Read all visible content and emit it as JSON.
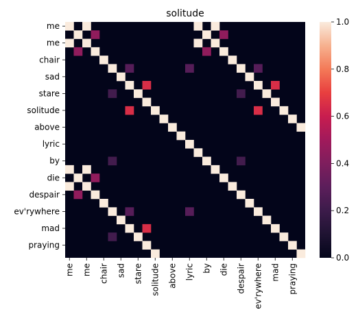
{
  "chart_data": {
    "type": "heatmap",
    "title": "solitude",
    "xlabel": "",
    "ylabel": "",
    "rows": 28,
    "cols": 28,
    "y_tick_labels": [
      {
        "index": 0,
        "label": "me"
      },
      {
        "index": 2,
        "label": "me"
      },
      {
        "index": 4,
        "label": "chair"
      },
      {
        "index": 6,
        "label": "sad"
      },
      {
        "index": 8,
        "label": "stare"
      },
      {
        "index": 10,
        "label": "solitude"
      },
      {
        "index": 12,
        "label": "above"
      },
      {
        "index": 14,
        "label": "lyric"
      },
      {
        "index": 16,
        "label": "by"
      },
      {
        "index": 18,
        "label": "die"
      },
      {
        "index": 20,
        "label": "despair"
      },
      {
        "index": 22,
        "label": "ev'rywhere"
      },
      {
        "index": 24,
        "label": "mad"
      },
      {
        "index": 26,
        "label": "praying"
      }
    ],
    "x_tick_labels": [
      {
        "index": 0,
        "label": "me"
      },
      {
        "index": 2,
        "label": "me"
      },
      {
        "index": 4,
        "label": "chair"
      },
      {
        "index": 6,
        "label": "sad"
      },
      {
        "index": 8,
        "label": "stare"
      },
      {
        "index": 10,
        "label": "solitude"
      },
      {
        "index": 12,
        "label": "above"
      },
      {
        "index": 14,
        "label": "lyric"
      },
      {
        "index": 16,
        "label": "by"
      },
      {
        "index": 18,
        "label": "die"
      },
      {
        "index": 20,
        "label": "despair"
      },
      {
        "index": 22,
        "label": "ev'rywhere"
      },
      {
        "index": 24,
        "label": "mad"
      },
      {
        "index": 26,
        "label": "praying"
      }
    ],
    "cells": [
      [
        0,
        0,
        1
      ],
      [
        0,
        2,
        1
      ],
      [
        0,
        15,
        1
      ],
      [
        0,
        17,
        1
      ],
      [
        1,
        1,
        1
      ],
      [
        1,
        3,
        0.45
      ],
      [
        1,
        16,
        1
      ],
      [
        1,
        18,
        0.45
      ],
      [
        2,
        0,
        1
      ],
      [
        2,
        2,
        1
      ],
      [
        2,
        15,
        1
      ],
      [
        2,
        17,
        1
      ],
      [
        3,
        1,
        0.45
      ],
      [
        3,
        3,
        1
      ],
      [
        3,
        16,
        0.45
      ],
      [
        3,
        18,
        1
      ],
      [
        4,
        4,
        1
      ],
      [
        4,
        19,
        1
      ],
      [
        5,
        5,
        1
      ],
      [
        5,
        7,
        0.28
      ],
      [
        5,
        14,
        0.28
      ],
      [
        5,
        20,
        1
      ],
      [
        5,
        22,
        0.28
      ],
      [
        6,
        6,
        1
      ],
      [
        6,
        21,
        1
      ],
      [
        7,
        7,
        1
      ],
      [
        7,
        9,
        0.65
      ],
      [
        7,
        22,
        1
      ],
      [
        7,
        24,
        0.65
      ],
      [
        8,
        5,
        0.22
      ],
      [
        8,
        8,
        1
      ],
      [
        8,
        20,
        0.22
      ],
      [
        8,
        23,
        1
      ],
      [
        9,
        9,
        1
      ],
      [
        9,
        24,
        1
      ],
      [
        10,
        7,
        0.65
      ],
      [
        10,
        10,
        1
      ],
      [
        10,
        22,
        0.65
      ],
      [
        10,
        25,
        1
      ],
      [
        11,
        11,
        1
      ],
      [
        11,
        26,
        1
      ],
      [
        12,
        12,
        1
      ],
      [
        12,
        27,
        1
      ],
      [
        13,
        13,
        1
      ],
      [
        14,
        14,
        1
      ],
      [
        15,
        15,
        1
      ],
      [
        16,
        5,
        0.22
      ],
      [
        16,
        16,
        1
      ],
      [
        16,
        20,
        0.22
      ],
      [
        17,
        0,
        1
      ],
      [
        17,
        2,
        1
      ],
      [
        17,
        17,
        1
      ],
      [
        18,
        1,
        1
      ],
      [
        18,
        3,
        0.45
      ],
      [
        18,
        18,
        1
      ],
      [
        19,
        0,
        1
      ],
      [
        19,
        2,
        1
      ],
      [
        19,
        19,
        1
      ],
      [
        20,
        1,
        0.45
      ],
      [
        20,
        3,
        1
      ],
      [
        20,
        20,
        1
      ],
      [
        21,
        4,
        1
      ],
      [
        21,
        21,
        1
      ],
      [
        22,
        5,
        1
      ],
      [
        22,
        7,
        0.28
      ],
      [
        22,
        14,
        0.28
      ],
      [
        22,
        22,
        1
      ],
      [
        23,
        6,
        1
      ],
      [
        23,
        23,
        1
      ],
      [
        24,
        7,
        1
      ],
      [
        24,
        9,
        0.65
      ],
      [
        24,
        24,
        1
      ],
      [
        25,
        5,
        0.22
      ],
      [
        25,
        8,
        1
      ],
      [
        25,
        25,
        1
      ],
      [
        26,
        9,
        1
      ],
      [
        26,
        26,
        1
      ],
      [
        27,
        10,
        1
      ],
      [
        27,
        27,
        1
      ]
    ],
    "colorbar": {
      "vmin": 0.0,
      "vmax": 1.0,
      "ticks": [
        "0.0",
        "0.2",
        "0.4",
        "0.6",
        "0.8",
        "1.0"
      ],
      "colormap": "rocket"
    },
    "grid": false
  }
}
